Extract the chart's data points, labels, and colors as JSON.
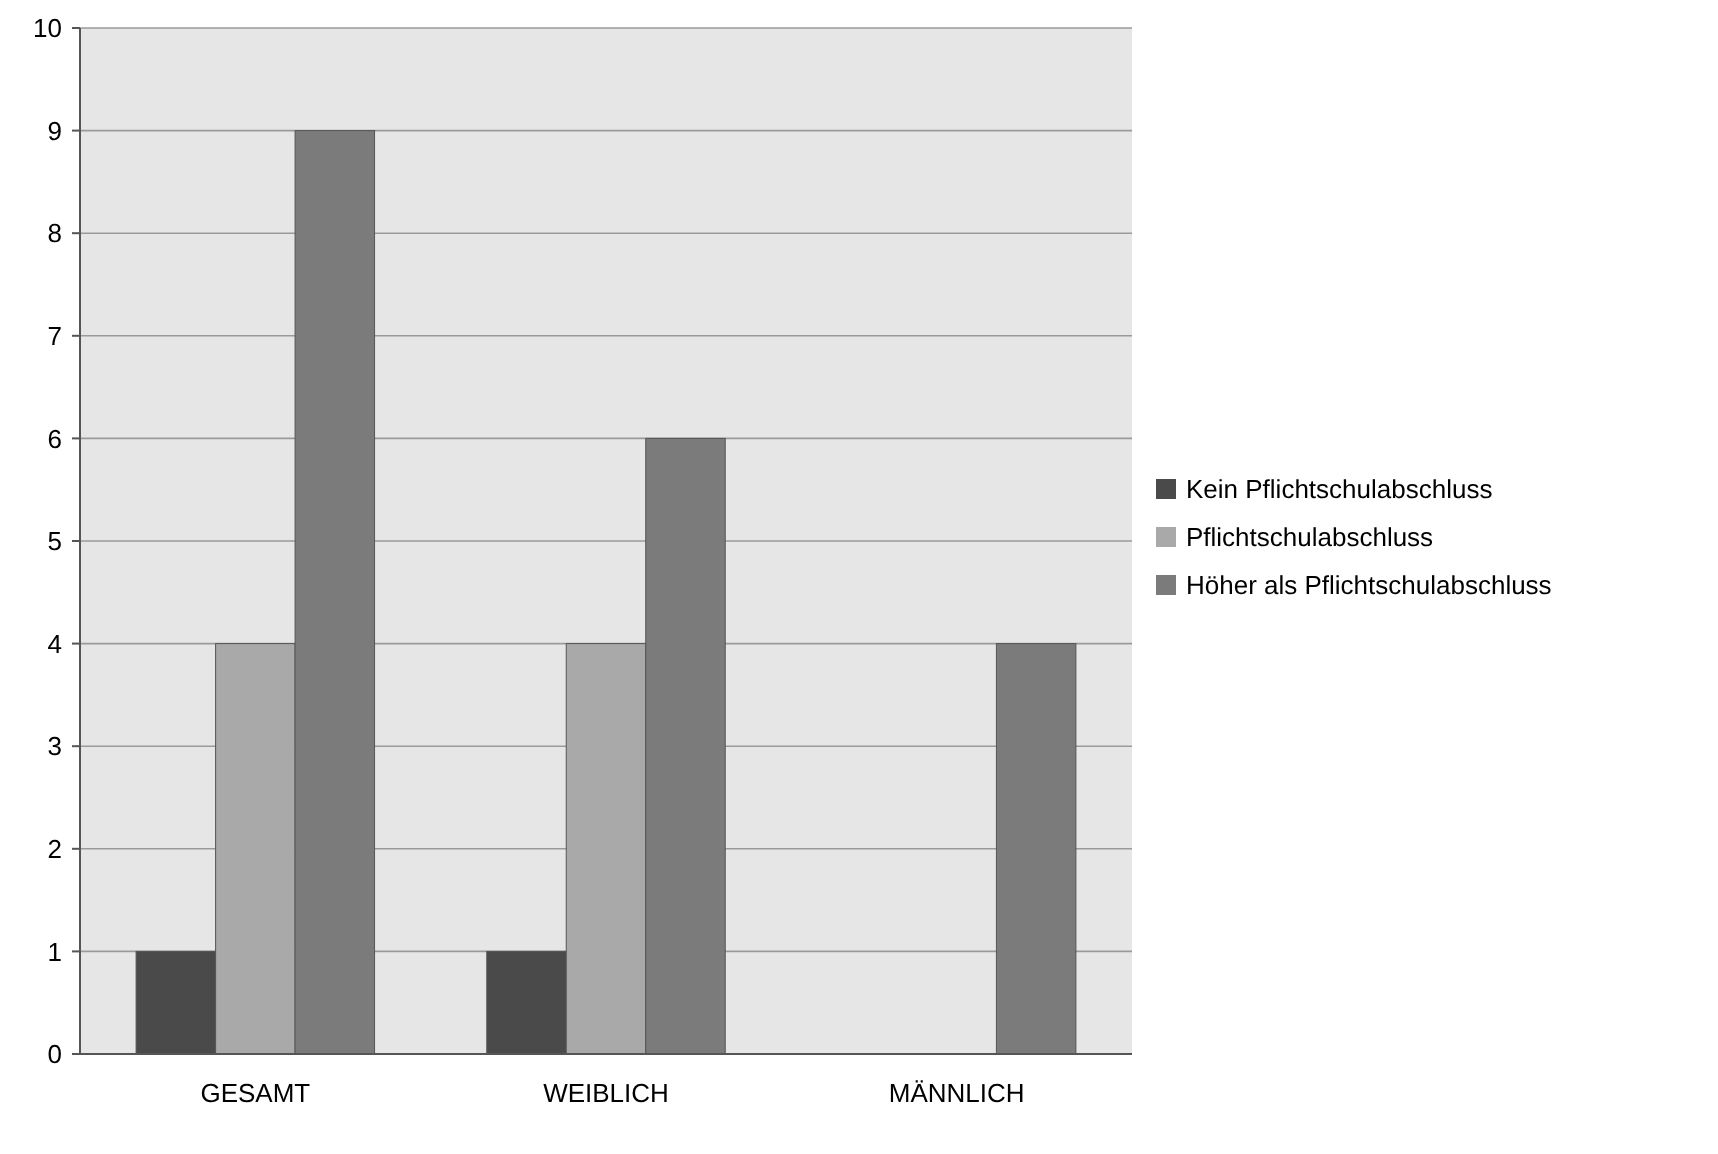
{
  "chart_data": {
    "type": "bar",
    "categories": [
      "GESAMT",
      "WEIBLICH",
      "MÄNNLICH"
    ],
    "series": [
      {
        "name": "Kein Pflichtschulabschluss",
        "color": "#4a4a4a",
        "values": [
          1,
          1,
          0
        ]
      },
      {
        "name": "Pflichtschulabschluss",
        "color": "#a9a9a9",
        "values": [
          4,
          4,
          0
        ]
      },
      {
        "name": "Höher als Pflichtschulabschluss",
        "color": "#7b7b7b",
        "values": [
          9,
          6,
          4
        ]
      }
    ],
    "ylim": [
      0,
      10
    ],
    "yticks": [
      0,
      1,
      2,
      3,
      4,
      5,
      6,
      7,
      8,
      9,
      10
    ],
    "grid": "y",
    "legend": "right"
  }
}
